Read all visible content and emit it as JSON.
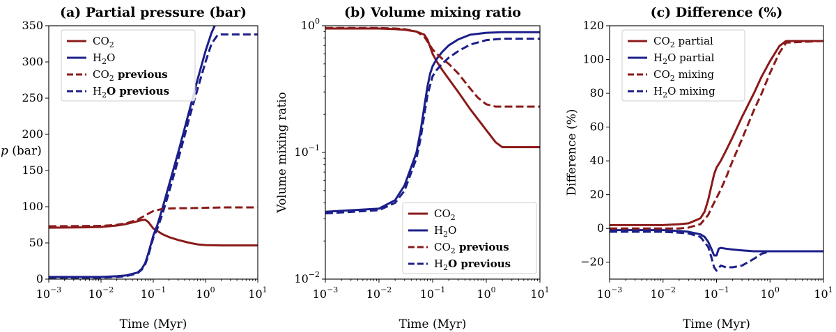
{
  "colors": {
    "co2": "#8b1a1a",
    "h2o": "#1c1f8a"
  },
  "chart_data": [
    {
      "type": "line",
      "title": "(a) Partial pressure (bar)",
      "xlabel": "Time (Myr)",
      "ylabel": "p (bar)",
      "ylabel_main": "p",
      "ylabel_unit": " (bar)",
      "xscale": "log",
      "yscale": "linear",
      "xlim": [
        0.001,
        10
      ],
      "ylim": [
        0,
        350
      ],
      "xticks": [
        0.001,
        0.01,
        0.1,
        1,
        10
      ],
      "xtick_labels": [
        {
          "base": "10",
          "exp": "−3"
        },
        {
          "base": "10",
          "exp": "−2"
        },
        {
          "base": "10",
          "exp": "−1"
        },
        {
          "base": "10",
          "exp": "0"
        },
        {
          "base": "10",
          "exp": "1"
        }
      ],
      "yticks": [
        0,
        50,
        100,
        150,
        200,
        250,
        300,
        350
      ],
      "ytick_labels": [
        "0",
        "50",
        "100",
        "150",
        "200",
        "250",
        "300",
        "350"
      ],
      "legend_position": "top-left",
      "series": [
        {
          "name": "CO2",
          "label_main": "CO",
          "label_sub": "2",
          "label_suffix": "",
          "color": "co2",
          "dash": "solid",
          "x": [
            0.001,
            0.005,
            0.01,
            0.02,
            0.03,
            0.05,
            0.06,
            0.07,
            0.08,
            0.1,
            0.15,
            0.2,
            0.3,
            0.5,
            0.7,
            1,
            2,
            10
          ],
          "y": [
            71,
            71.5,
            72,
            74,
            76,
            80,
            81.5,
            82,
            79,
            70,
            62,
            58,
            54,
            50,
            48,
            47,
            46.5,
            46.5
          ]
        },
        {
          "name": "H2O",
          "label_main": "H",
          "label_sub": "2",
          "label_suffix": "O",
          "color": "h2o",
          "dash": "solid",
          "x": [
            0.001,
            0.01,
            0.02,
            0.03,
            0.05,
            0.06,
            0.07,
            0.08,
            0.09,
            0.1,
            0.12,
            0.15,
            0.2,
            0.3,
            0.5,
            0.7,
            1,
            1.3,
            1.5
          ],
          "y": [
            3,
            3,
            4,
            5,
            9,
            14,
            22,
            35,
            48,
            60,
            75,
            98,
            130,
            175,
            235,
            275,
            315,
            340,
            350
          ]
        },
        {
          "name": "CO2 previous",
          "label_main": "CO",
          "label_sub": "2",
          "label_suffix": " previous",
          "color": "co2",
          "dash": "dashed",
          "x": [
            0.001,
            0.01,
            0.02,
            0.03,
            0.05,
            0.07,
            0.1,
            0.15,
            0.2,
            0.3,
            0.5,
            1,
            2,
            10
          ],
          "y": [
            73,
            73.5,
            75,
            77,
            82,
            88,
            94,
            97,
            97.5,
            98,
            98,
            98.5,
            99,
            99
          ]
        },
        {
          "name": "H2O previous",
          "label_main": "H",
          "label_sub": "2",
          "label_suffix": "O previous",
          "color": "h2o",
          "dash": "dashed",
          "x": [
            0.001,
            0.01,
            0.02,
            0.03,
            0.05,
            0.06,
            0.07,
            0.08,
            0.09,
            0.1,
            0.12,
            0.15,
            0.2,
            0.3,
            0.5,
            0.7,
            1,
            1.3,
            1.7,
            2,
            3,
            10
          ],
          "y": [
            2,
            2,
            3,
            4,
            8,
            13,
            20,
            32,
            45,
            57,
            70,
            90,
            120,
            165,
            225,
            262,
            300,
            325,
            337,
            338,
            338,
            338
          ]
        }
      ]
    },
    {
      "type": "line",
      "title": "(b) Volume mixing ratio",
      "xlabel": "Time (Myr)",
      "ylabel": "Volume mixing ratio",
      "xscale": "log",
      "yscale": "log",
      "xlim": [
        0.001,
        10
      ],
      "ylim": [
        0.01,
        1
      ],
      "xticks": [
        0.001,
        0.01,
        0.1,
        1,
        10
      ],
      "xtick_labels": [
        {
          "base": "10",
          "exp": "−3"
        },
        {
          "base": "10",
          "exp": "−2"
        },
        {
          "base": "10",
          "exp": "−1"
        },
        {
          "base": "10",
          "exp": "0"
        },
        {
          "base": "10",
          "exp": "1"
        }
      ],
      "yticks": [
        0.01,
        0.1,
        1
      ],
      "ytick_labels": [
        {
          "base": "10",
          "exp": "−2"
        },
        {
          "base": "10",
          "exp": "−1"
        },
        {
          "base": "10",
          "exp": "0"
        }
      ],
      "legend_position": "bottom-right",
      "series": [
        {
          "name": "CO2",
          "label_main": "CO",
          "label_sub": "2",
          "label_suffix": "",
          "color": "co2",
          "dash": "solid",
          "x": [
            0.001,
            0.01,
            0.02,
            0.03,
            0.05,
            0.07,
            0.08,
            0.09,
            0.1,
            0.12,
            0.15,
            0.2,
            0.3,
            0.5,
            1,
            1.5,
            2,
            10
          ],
          "y": [
            0.95,
            0.95,
            0.94,
            0.93,
            0.9,
            0.85,
            0.78,
            0.68,
            0.6,
            0.52,
            0.45,
            0.38,
            0.3,
            0.22,
            0.15,
            0.12,
            0.11,
            0.11
          ]
        },
        {
          "name": "H2O",
          "label_main": "H",
          "label_sub": "2",
          "label_suffix": "O",
          "color": "h2o",
          "dash": "solid",
          "x": [
            0.001,
            0.01,
            0.02,
            0.03,
            0.05,
            0.06,
            0.07,
            0.08,
            0.09,
            0.1,
            0.12,
            0.15,
            0.2,
            0.3,
            0.5,
            1,
            2,
            10
          ],
          "y": [
            0.034,
            0.036,
            0.042,
            0.055,
            0.1,
            0.15,
            0.23,
            0.33,
            0.42,
            0.48,
            0.55,
            0.62,
            0.7,
            0.78,
            0.85,
            0.88,
            0.89,
            0.89
          ]
        },
        {
          "name": "CO2 previous",
          "label_main": "CO",
          "label_sub": "2",
          "label_suffix": " previous",
          "color": "co2",
          "dash": "dashed",
          "x": [
            0.001,
            0.01,
            0.02,
            0.03,
            0.05,
            0.07,
            0.08,
            0.1,
            0.12,
            0.15,
            0.2,
            0.3,
            0.5,
            0.7,
            1,
            1.5,
            2,
            10
          ],
          "y": [
            0.96,
            0.96,
            0.95,
            0.94,
            0.9,
            0.82,
            0.75,
            0.65,
            0.6,
            0.55,
            0.5,
            0.42,
            0.32,
            0.27,
            0.24,
            0.23,
            0.23,
            0.23
          ]
        },
        {
          "name": "H2O previous",
          "label_main": "H",
          "label_sub": "2",
          "label_suffix": "O previous",
          "color": "h2o",
          "dash": "dashed",
          "x": [
            0.001,
            0.01,
            0.02,
            0.03,
            0.05,
            0.06,
            0.07,
            0.08,
            0.09,
            0.1,
            0.12,
            0.15,
            0.2,
            0.3,
            0.5,
            1,
            2,
            10
          ],
          "y": [
            0.033,
            0.035,
            0.04,
            0.05,
            0.09,
            0.13,
            0.2,
            0.28,
            0.34,
            0.4,
            0.45,
            0.5,
            0.56,
            0.63,
            0.71,
            0.77,
            0.79,
            0.79
          ]
        }
      ]
    },
    {
      "type": "line",
      "title": "(c) Difference (%)",
      "xlabel": "Time (Myr)",
      "ylabel": "Difference (%)",
      "xscale": "log",
      "yscale": "linear",
      "xlim": [
        0.001,
        10
      ],
      "ylim": [
        -30,
        120
      ],
      "xticks": [
        0.001,
        0.01,
        0.1,
        1,
        10
      ],
      "xtick_labels": [
        {
          "base": "10",
          "exp": "−3"
        },
        {
          "base": "10",
          "exp": "−2"
        },
        {
          "base": "10",
          "exp": "−1"
        },
        {
          "base": "10",
          "exp": "0"
        },
        {
          "base": "10",
          "exp": "1"
        }
      ],
      "yticks": [
        -20,
        0,
        20,
        40,
        60,
        80,
        100,
        120
      ],
      "ytick_labels": [
        "−20",
        "0",
        "20",
        "40",
        "60",
        "80",
        "100",
        "120"
      ],
      "legend_position": "top-left",
      "series": [
        {
          "name": "CO2 partial",
          "label_main": "CO",
          "label_sub": "2",
          "label_suffix": " partial",
          "color": "co2",
          "dash": "solid",
          "x": [
            0.001,
            0.01,
            0.02,
            0.03,
            0.05,
            0.06,
            0.07,
            0.08,
            0.09,
            0.1,
            0.12,
            0.15,
            0.2,
            0.3,
            0.5,
            0.7,
            1,
            1.5,
            2,
            10
          ],
          "y": [
            2,
            2,
            2.5,
            3,
            6,
            10,
            17,
            25,
            32,
            36,
            40,
            46,
            54,
            66,
            80,
            90,
            99,
            108,
            111,
            111
          ]
        },
        {
          "name": "H2O partial",
          "label_main": "H",
          "label_sub": "2",
          "label_suffix": "O partial",
          "color": "h2o",
          "dash": "solid",
          "x": [
            0.001,
            0.01,
            0.02,
            0.03,
            0.05,
            0.06,
            0.07,
            0.08,
            0.09,
            0.1,
            0.11,
            0.12,
            0.15,
            0.2,
            0.3,
            0.5,
            1,
            2,
            10
          ],
          "y": [
            -1,
            -1,
            -1.5,
            -2,
            -3.5,
            -5,
            -8,
            -12,
            -16,
            -16,
            -12,
            -11.5,
            -12,
            -12.5,
            -13,
            -13.5,
            -13.5,
            -13.5,
            -13.5
          ]
        },
        {
          "name": "CO2 mixing",
          "label_main": "CO",
          "label_sub": "2",
          "label_suffix": " mixing",
          "color": "co2",
          "dash": "dashed",
          "x": [
            0.001,
            0.01,
            0.02,
            0.03,
            0.05,
            0.07,
            0.08,
            0.1,
            0.12,
            0.15,
            0.2,
            0.3,
            0.5,
            0.7,
            1,
            1.5,
            2,
            10
          ],
          "y": [
            0,
            0,
            0,
            0.5,
            2.5,
            8,
            12,
            18,
            23,
            30,
            40,
            53,
            70,
            80,
            92,
            104,
            110,
            111
          ]
        },
        {
          "name": "H2O mixing",
          "label_main": "H",
          "label_sub": "2",
          "label_suffix": "O mixing",
          "color": "h2o",
          "dash": "dashed",
          "x": [
            0.001,
            0.01,
            0.02,
            0.03,
            0.05,
            0.07,
            0.08,
            0.09,
            0.1,
            0.12,
            0.15,
            0.2,
            0.3,
            0.5,
            0.7,
            1,
            2,
            10
          ],
          "y": [
            -2,
            -2,
            -2.5,
            -3,
            -5,
            -11,
            -17,
            -23,
            -25,
            -22,
            -23,
            -23,
            -22,
            -18,
            -15,
            -13.5,
            -13.5,
            -13.5
          ]
        }
      ]
    }
  ]
}
